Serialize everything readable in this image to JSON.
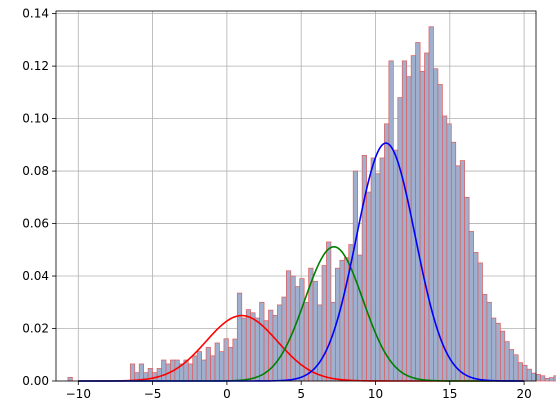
{
  "chart_data": {
    "type": "bar",
    "title": "",
    "xlabel": "",
    "ylabel": "",
    "xlim": [
      -11.5,
      20.8
    ],
    "ylim": [
      0,
      0.141
    ],
    "xticks": [
      -10,
      -5,
      0,
      5,
      10,
      15,
      20
    ],
    "yticks": [
      0.0,
      0.02,
      0.04,
      0.06,
      0.08,
      0.1,
      0.12,
      0.14
    ],
    "ytick_labels": [
      "0.00",
      "0.02",
      "0.04",
      "0.06",
      "0.08",
      "0.10",
      "0.12",
      "0.14"
    ],
    "grid": true,
    "histogram": {
      "bin_start": -10.7,
      "bin_width": 0.3,
      "density": [
        0.0014,
        0,
        0,
        0,
        0,
        0,
        0,
        0,
        0,
        0,
        0,
        0,
        0,
        0,
        0.0065,
        0.0032,
        0.0065,
        0.0032,
        0.0048,
        0.0032,
        0.0048,
        0.008,
        0.0065,
        0.008,
        0.008,
        0.0065,
        0.008,
        0.0065,
        0.0096,
        0.0112,
        0.008,
        0.0128,
        0.0096,
        0.0145,
        0.0112,
        0.0161,
        0.0128,
        0.016,
        0.0335,
        0.024,
        0.0272,
        0.026,
        0.024,
        0.03,
        0.023,
        0.027,
        0.025,
        0.029,
        0.032,
        0.042,
        0.04,
        0.036,
        0.039,
        0.03,
        0.043,
        0.038,
        0.029,
        0.044,
        0.053,
        0.03,
        0.043,
        0.046,
        0.047,
        0.052,
        0.08,
        0.048,
        0.086,
        0.072,
        0.085,
        0.079,
        0.085,
        0.098,
        0.122,
        0.088,
        0.108,
        0.122,
        0.116,
        0.124,
        0.129,
        0.118,
        0.125,
        0.135,
        0.119,
        0.113,
        0.101,
        0.098,
        0.091,
        0.082,
        0.084,
        0.07,
        0.057,
        0.049,
        0.045,
        0.033,
        0.03,
        0.024,
        0.022,
        0.019,
        0.015,
        0.012,
        0.01,
        0.007,
        0.006,
        0.0045,
        0.003,
        0.0025,
        0.002,
        0.001,
        0.0013,
        0.002,
        0.0032,
        0.003,
        0.0015,
        0.0015,
        0,
        0,
        0,
        0,
        0,
        0,
        0.003,
        0.0015
      ]
    },
    "series": [
      {
        "type": "line",
        "color": "#ff0000",
        "curve": "normal",
        "weight": 0.15,
        "mean": 1.0,
        "sd": 2.4
      },
      {
        "type": "line",
        "color": "#008000",
        "curve": "normal",
        "weight": 0.25,
        "mean": 7.2,
        "sd": 1.95
      },
      {
        "type": "line",
        "color": "#0000ff",
        "curve": "normal",
        "weight": 0.45,
        "mean": 10.7,
        "sd": 1.98
      }
    ],
    "colors": {
      "bar_fill": "#9fb0cf",
      "bar_edge": "#e05a5a"
    }
  }
}
